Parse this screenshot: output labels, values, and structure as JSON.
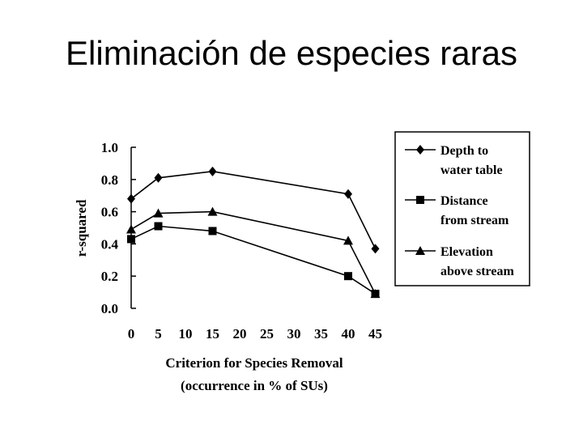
{
  "slide": {
    "title": "Eliminación de especies raras"
  },
  "chart_data": {
    "type": "line",
    "x": [
      0,
      5,
      15,
      40,
      45
    ],
    "xticks": [
      0,
      5,
      10,
      15,
      20,
      25,
      30,
      35,
      40,
      45
    ],
    "yticks": [
      "0.0",
      "0.2",
      "0.4",
      "0.6",
      "0.8",
      "1.0"
    ],
    "xlabel": [
      "Criterion for Species Removal",
      "(occurrence in % of SUs)"
    ],
    "ylabel": "r-squared",
    "xlim": [
      0,
      45
    ],
    "ylim": [
      0,
      1.0
    ],
    "grid": false,
    "legend_position": "right",
    "series": [
      {
        "name": [
          "Depth to",
          "water table"
        ],
        "marker": "diamond",
        "values": [
          0.68,
          0.81,
          0.85,
          0.71,
          0.37
        ]
      },
      {
        "name": [
          "Distance",
          "from stream"
        ],
        "marker": "square",
        "values": [
          0.43,
          0.51,
          0.48,
          0.2,
          0.09
        ]
      },
      {
        "name": [
          "Elevation",
          "above stream"
        ],
        "marker": "triangle",
        "values": [
          0.49,
          0.59,
          0.6,
          0.42,
          0.09
        ]
      }
    ]
  }
}
